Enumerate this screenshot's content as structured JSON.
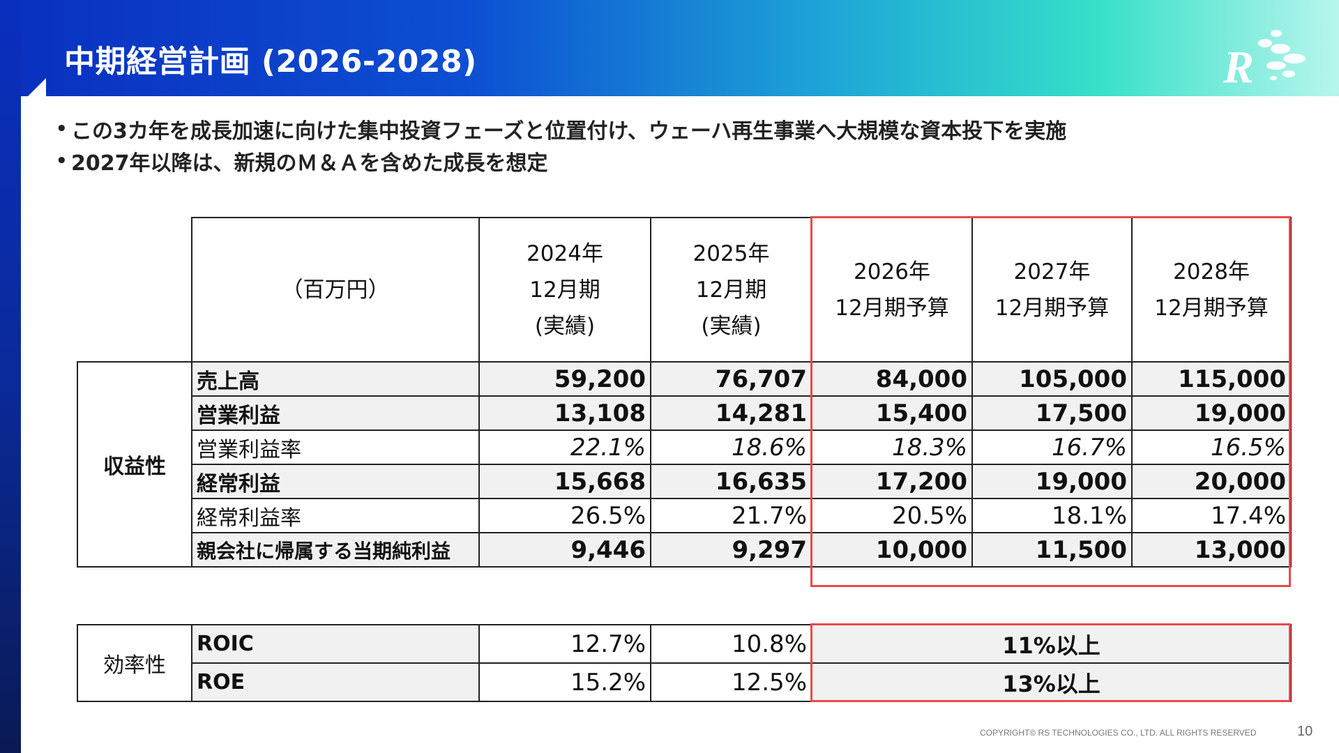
{
  "title": "中期経営計画 (2026-2028)",
  "bullets": [
    "この3カ年を成長加速に向けた集中投資フェーズと位置付け、ウェーハ再生事業へ大規模な資本投下を実施",
    "2027年以降は、新規のＭ＆Ａを含めた成長を想定"
  ],
  "table": {
    "unit": "（百万円）",
    "headers": [
      {
        "line1": "2024年",
        "line2": "12月期",
        "line3": "(実績)"
      },
      {
        "line1": "2025年",
        "line2": "12月期",
        "line3": "(実績)"
      },
      {
        "line1": "2026年",
        "line2": "12月期予算"
      },
      {
        "line1": "2027年",
        "line2": "12月期予算"
      },
      {
        "line1": "2028年",
        "line2": "12月期予算"
      }
    ],
    "category_profitability": "収益性",
    "rows": [
      {
        "label": "売上高",
        "values": [
          "59,200",
          "76,707",
          "84,000",
          "105,000",
          "115,000"
        ]
      },
      {
        "label": "営業利益",
        "values": [
          "13,108",
          "14,281",
          "15,400",
          "17,500",
          "19,000"
        ]
      },
      {
        "label": "営業利益率",
        "values": [
          "22.1%",
          "18.6%",
          "18.3%",
          "16.7%",
          "16.5%"
        ]
      },
      {
        "label": "経常利益",
        "values": [
          "15,668",
          "16,635",
          "17,200",
          "19,000",
          "20,000"
        ]
      },
      {
        "label": "経常利益率",
        "values": [
          "26.5%",
          "21.7%",
          "20.5%",
          "18.1%",
          "17.4%"
        ]
      },
      {
        "label": "親会社に帰属する当期純利益",
        "values": [
          "9,446",
          "9,297",
          "10,000",
          "11,500",
          "13,000"
        ]
      }
    ]
  },
  "efficiency": {
    "category": "効率性",
    "rows": [
      {
        "label": "ROIC",
        "values": [
          "12.7%",
          "10.8%"
        ],
        "target": "11%以上"
      },
      {
        "label": "ROE",
        "values": [
          "15.2%",
          "12.5%"
        ],
        "target": "13%以上"
      }
    ]
  },
  "footer": "COPYRIGHT© RS TECHNOLOGIES CO., LTD. ALL RIGHTS RESERVED",
  "page_number": "10",
  "colors": {
    "accent_blue": "#0a2fbf",
    "highlight_red": "#e84a4a",
    "teal": "#36e0c8"
  }
}
